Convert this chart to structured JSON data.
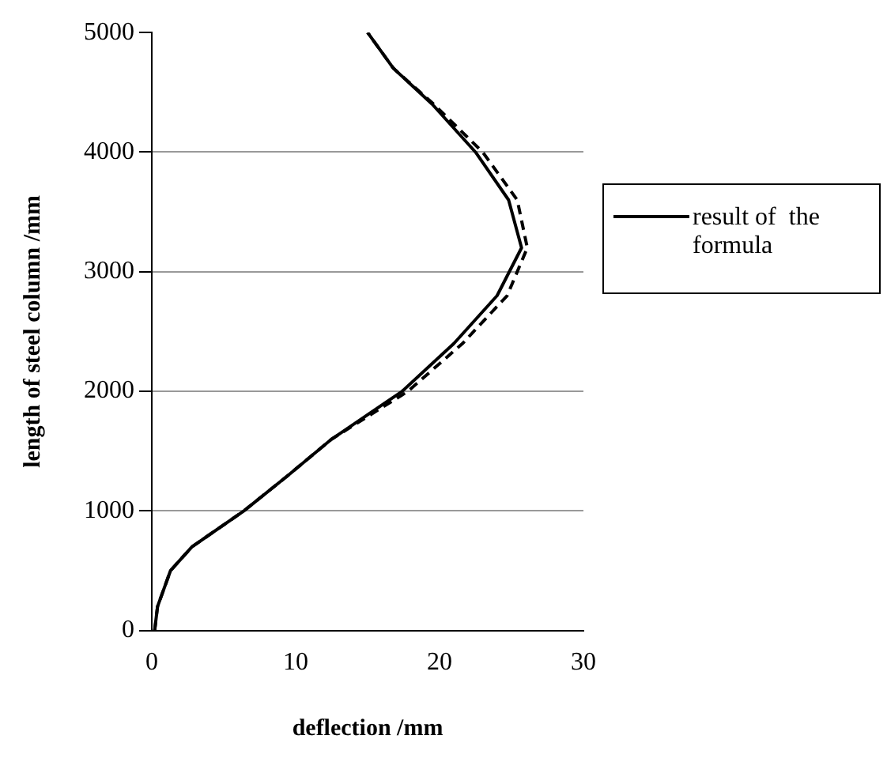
{
  "chart_data": {
    "type": "line",
    "xlabel": "deflection /mm",
    "ylabel": "length of steel column /mm",
    "xlim": [
      0,
      30
    ],
    "xticks": [
      0,
      10,
      20,
      30
    ],
    "ylim": [
      0,
      5000
    ],
    "yticks": [
      0,
      1000,
      2000,
      3000,
      4000,
      5000
    ],
    "grid": "y",
    "legend": "right",
    "marker": "none",
    "series": [
      {
        "name": "result of  the formula",
        "color": "#000000",
        "line_style": "solid",
        "x": [
          0.2,
          0.4,
          1.3,
          2.8,
          6.4,
          9.5,
          12.5,
          17.4,
          21,
          24,
          25.7,
          24.8,
          22.5,
          19.5,
          16.8,
          15
        ],
        "values": [
          0,
          200,
          500,
          700,
          1000,
          1300,
          1600,
          2000,
          2400,
          2800,
          3200,
          3600,
          4000,
          4400,
          4700,
          5000
        ]
      },
      {
        "color": "#000000",
        "line_style": "dashed",
        "x": [
          0.2,
          0.4,
          1.3,
          2.8,
          6.4,
          9.5,
          12.5,
          17.8,
          21.6,
          24.7,
          26.1,
          25.4,
          23,
          19.6,
          16.8,
          15
        ],
        "values": [
          0,
          200,
          500,
          700,
          1000,
          1300,
          1600,
          2000,
          2400,
          2800,
          3200,
          3600,
          4000,
          4400,
          4700,
          5000
        ]
      }
    ]
  }
}
